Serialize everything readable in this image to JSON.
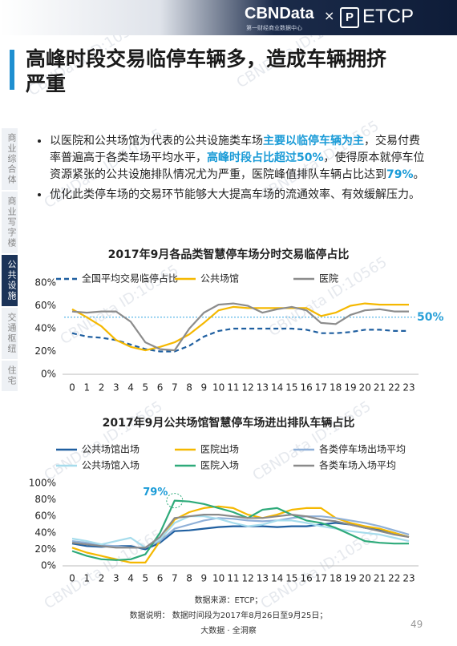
{
  "header": {
    "brand": "CBNData",
    "cross": "×",
    "partner": "ETCP",
    "brand_sub": "第一财经商业数据中心"
  },
  "watermark": "CBNData ID:10565",
  "title": "高峰时段交易临停车辆多，造成车辆拥挤严重",
  "side_nav": [
    {
      "label": "商业综合体",
      "active": false
    },
    {
      "label": "商业写字楼",
      "active": false
    },
    {
      "label": "公共设施",
      "active": true
    },
    {
      "label": "交通枢纽",
      "active": false
    },
    {
      "label": "住宅",
      "active": false
    }
  ],
  "bullets": [
    [
      {
        "text": "以医院和公共场馆为代表的公共设施类车场",
        "highlight": false
      },
      {
        "text": "主要以临停车辆为主",
        "highlight": true
      },
      {
        "text": "，交易付费率普遍高于各类车场平均水平，",
        "highlight": false
      },
      {
        "text": "高峰时段占比超过50%",
        "highlight": true
      },
      {
        "text": "，使得原本就停车位资源紧张的公共设施排队情况尤为严重，医院峰值排队车辆占比达到",
        "highlight": false
      },
      {
        "text": "79%",
        "highlight": true
      },
      {
        "text": "。",
        "highlight": false
      }
    ],
    [
      {
        "text": "优化此类停车场的交易环节能够大大提高车场的流通效率、有效缓解压力。",
        "highlight": false
      }
    ]
  ],
  "chart_data": [
    {
      "type": "line",
      "title": "2017年9月各品类智慧停车场分时交易临停占比",
      "categories": [
        "0",
        "1",
        "2",
        "3",
        "4",
        "5",
        "6",
        "7",
        "8",
        "9",
        "10",
        "11",
        "12",
        "13",
        "14",
        "15",
        "16",
        "17",
        "18",
        "19",
        "20",
        "21",
        "22",
        "23"
      ],
      "series": [
        {
          "name": "全国平均交易临停占比",
          "color": "#1f5fa0",
          "dashed": true,
          "values": [
            36,
            33,
            32,
            30,
            26,
            22,
            20,
            20,
            25,
            33,
            38,
            40,
            40,
            40,
            40,
            40,
            39,
            36,
            36,
            37,
            39,
            39,
            38,
            38
          ]
        },
        {
          "name": "公共场馆",
          "color": "#f5b800",
          "dashed": false,
          "values": [
            57,
            50,
            42,
            30,
            24,
            21,
            24,
            28,
            35,
            45,
            56,
            59,
            58,
            58,
            58,
            58,
            58,
            51,
            54,
            60,
            62,
            61,
            61,
            61
          ]
        },
        {
          "name": "医院",
          "color": "#8c8c8c",
          "dashed": false,
          "values": [
            55,
            54,
            55,
            55,
            46,
            28,
            22,
            21,
            40,
            54,
            61,
            62,
            60,
            54,
            57,
            59,
            56,
            45,
            44,
            52,
            56,
            57,
            55,
            55
          ]
        }
      ],
      "ylim": [
        0,
        80
      ],
      "yticks": [
        {
          "value": 0,
          "label": "0%"
        },
        {
          "value": 20,
          "label": "20%"
        },
        {
          "value": 40,
          "label": "40%"
        },
        {
          "value": 60,
          "label": "60%"
        },
        {
          "value": 80,
          "label": "80%"
        }
      ],
      "reference_line": {
        "value": 50,
        "label": "50%",
        "color": "#5bb8e8"
      },
      "legend_columns": 3
    },
    {
      "type": "line",
      "title": "2017年9月公共场馆智慧停车场进出排队车辆占比",
      "categories": [
        "0",
        "1",
        "2",
        "3",
        "4",
        "5",
        "6",
        "7",
        "8",
        "9",
        "10",
        "11",
        "12",
        "13",
        "14",
        "15",
        "16",
        "17",
        "18",
        "19",
        "20",
        "21",
        "22",
        "23"
      ],
      "series": [
        {
          "name": "公共场馆出场",
          "color": "#1f5fa0",
          "dashed": false,
          "values": [
            27,
            24,
            23,
            24,
            24,
            20,
            28,
            42,
            43,
            45,
            47,
            48,
            48,
            48,
            47,
            48,
            48,
            50,
            52,
            50,
            46,
            44,
            40,
            35
          ]
        },
        {
          "name": "医院出场",
          "color": "#f5b800",
          "dashed": false,
          "values": [
            22,
            16,
            12,
            8,
            4,
            4,
            30,
            56,
            65,
            70,
            72,
            70,
            62,
            58,
            62,
            68,
            70,
            70,
            58,
            52,
            48,
            45,
            40,
            35
          ]
        },
        {
          "name": "各类停车场出场平均",
          "color": "#8fb0d8",
          "dashed": false,
          "values": [
            30,
            28,
            25,
            24,
            22,
            22,
            30,
            45,
            50,
            55,
            58,
            57,
            55,
            54,
            55,
            58,
            60,
            60,
            58,
            55,
            52,
            48,
            43,
            38
          ]
        },
        {
          "name": "公共场馆入场",
          "color": "#a6dcec",
          "dashed": false,
          "values": [
            33,
            30,
            26,
            30,
            34,
            22,
            32,
            52,
            60,
            60,
            57,
            52,
            48,
            50,
            55,
            55,
            52,
            48,
            45,
            42,
            40,
            38,
            34,
            30
          ]
        },
        {
          "name": "医院入场",
          "color": "#2eaa7a",
          "dashed": false,
          "values": [
            18,
            12,
            8,
            7,
            8,
            14,
            40,
            79,
            78,
            75,
            70,
            65,
            58,
            68,
            70,
            62,
            55,
            52,
            46,
            38,
            30,
            28,
            27,
            27
          ]
        },
        {
          "name": "各类车场入场平均",
          "color": "#8a8a8a",
          "dashed": false,
          "values": [
            28,
            26,
            24,
            22,
            22,
            22,
            35,
            58,
            60,
            62,
            62,
            60,
            58,
            58,
            60,
            62,
            60,
            56,
            54,
            50,
            46,
            42,
            38,
            35
          ]
        }
      ],
      "ylim": [
        0,
        100
      ],
      "yticks": [
        {
          "value": 0,
          "label": "0%"
        },
        {
          "value": 20,
          "label": "20%"
        },
        {
          "value": 40,
          "label": "40%"
        },
        {
          "value": 60,
          "label": "60%"
        },
        {
          "value": 80,
          "label": "80%"
        },
        {
          "value": 100,
          "label": "100%"
        }
      ],
      "annotation": "79%",
      "legend_columns": 3
    }
  ],
  "footer": {
    "source": "数据来源：ETCP；",
    "note": "数据说明：  数据时间段为2017年8月26日至9月25日；",
    "tagline": "大数据 · 全洞察",
    "page": "49"
  }
}
